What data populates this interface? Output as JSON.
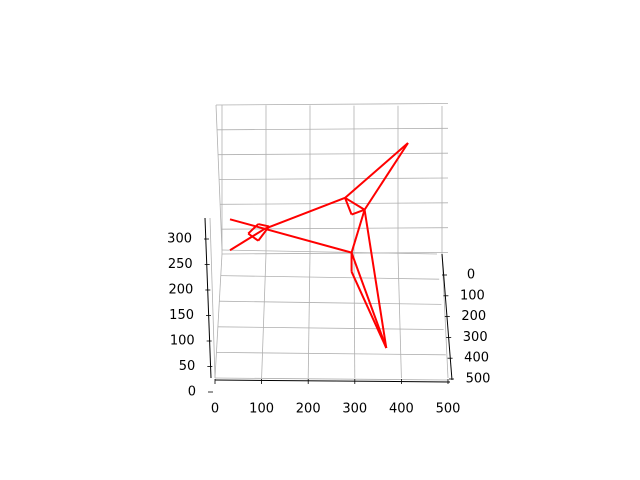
{
  "chart_data": {
    "type": "line3d",
    "projection": "3d",
    "grid": true,
    "x_axis": {
      "range": [
        0,
        500
      ],
      "ticks": [
        0,
        100,
        200,
        300,
        400,
        500
      ],
      "tick_labels": [
        "0",
        "100",
        "200",
        "300",
        "400",
        "500"
      ]
    },
    "y_axis": {
      "range": [
        0,
        500
      ],
      "ticks": [
        0,
        100,
        200,
        300,
        400,
        500
      ],
      "tick_labels": [
        "0",
        "100",
        "200",
        "300",
        "400",
        "500"
      ]
    },
    "z_axis": {
      "range": [
        0,
        300
      ],
      "ticks": [
        0,
        50,
        100,
        150,
        200,
        250,
        300
      ],
      "tick_labels": [
        "0",
        "50",
        "100",
        "150",
        "200",
        "250",
        "300"
      ]
    },
    "series": [
      {
        "color": "#ff0000",
        "segments": [
          [
            [
              20,
              180,
              0
            ],
            [
              100,
              200,
              0
            ]
          ],
          [
            [
              20,
              245,
              0
            ],
            [
              100,
              200,
              0
            ]
          ],
          [
            [
              100,
              200,
              0
            ],
            [
              285,
              135,
              0
            ]
          ],
          [
            [
              100,
              200,
              0
            ],
            [
              300,
              250,
              0
            ]
          ],
          [
            [
              285,
              135,
              0
            ],
            [
              430,
              20,
              0
            ]
          ],
          [
            [
              430,
              20,
              0
            ],
            [
              330,
              160,
              0
            ]
          ],
          [
            [
              285,
              135,
              0
            ],
            [
              330,
              160,
              0
            ]
          ],
          [
            [
              300,
              250,
              0
            ],
            [
              330,
              160,
              0
            ]
          ],
          [
            [
              330,
              160,
              0
            ],
            [
              380,
              450,
              0
            ]
          ],
          [
            [
              300,
              250,
              0
            ],
            [
              380,
              450,
              0
            ]
          ],
          [
            [
              285,
              135,
              0
            ],
            [
              300,
              170,
              0
            ]
          ],
          [
            [
              300,
              170,
              0
            ],
            [
              330,
              160,
              0
            ]
          ],
          [
            [
              300,
              250,
              0
            ],
            [
              300,
              290,
              0
            ]
          ],
          [
            [
              300,
              290,
              0
            ],
            [
              380,
              450,
              0
            ]
          ],
          [
            [
              62,
              210,
              0
            ],
            [
              85,
              190,
              0
            ]
          ],
          [
            [
              62,
              210,
              0
            ],
            [
              85,
              225,
              0
            ]
          ],
          [
            [
              85,
              190,
              0
            ],
            [
              110,
              195,
              0
            ]
          ],
          [
            [
              85,
              225,
              0
            ],
            [
              110,
              195,
              0
            ]
          ]
        ]
      }
    ]
  }
}
